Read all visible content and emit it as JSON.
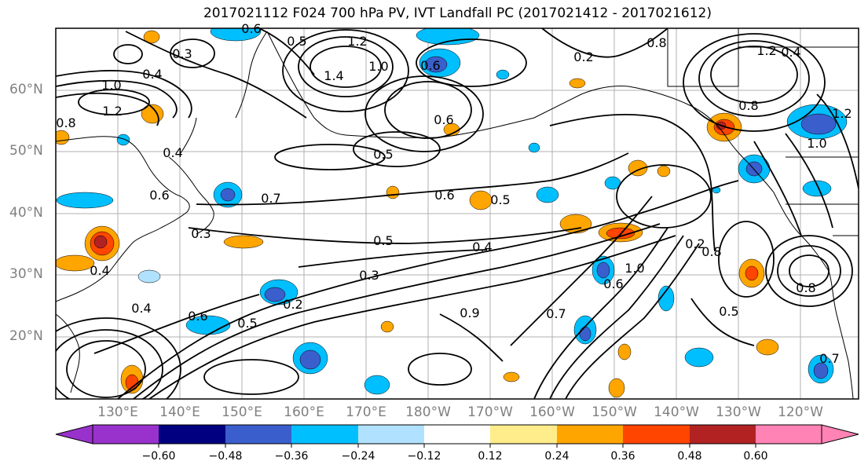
{
  "title": "2017021112 F024 700 hPa PV, IVT Landfall PC (2017021412 - 2017021612)",
  "map": {
    "region": "North Pacific",
    "lat_labels": [
      "60°N",
      "50°N",
      "40°N",
      "30°N",
      "20°N"
    ],
    "lon_labels": [
      "130°E",
      "140°E",
      "150°E",
      "160°E",
      "170°E",
      "180°W",
      "170°W",
      "160°W",
      "150°W",
      "140°W",
      "130°W",
      "120°W"
    ],
    "contour_labels": [
      "0.3",
      "0.6",
      "0.5",
      "1.2",
      "1.4",
      "1.0",
      "0.4",
      "1.0",
      "1.2",
      "0.8",
      "0.6",
      "0.6",
      "0.5",
      "0.7",
      "0.4",
      "0.6",
      "0.3",
      "0.4",
      "0.6",
      "0.5",
      "0.4",
      "0.5",
      "0.3",
      "0.2",
      "0.4",
      "0.6",
      "0.5",
      "0.7",
      "0.9",
      "0.2",
      "0.8",
      "0.6",
      "1.0",
      "0.5",
      "0.8",
      "0.7",
      "0.8",
      "1.2",
      "1.0",
      "1.2",
      "0.4",
      "0.2",
      "0.8"
    ],
    "grid": true,
    "coastlines": true
  },
  "colorbar": {
    "ticks": [
      "−0.60",
      "−0.48",
      "−0.36",
      "−0.24",
      "−0.12",
      "0.12",
      "0.24",
      "0.36",
      "0.48",
      "0.60"
    ],
    "colors": [
      "#9932cc",
      "#000080",
      "#3a5fcd",
      "#00bfff",
      "#b0e2ff",
      "#ffffff",
      "#ffec8b",
      "#ffa500",
      "#ff4500",
      "#b22222",
      "#ff83b4"
    ]
  },
  "shading_colors": {
    "strong_negative": "#3a5fcd",
    "negative": "#00bfff",
    "weak_negative": "#b0e2ff",
    "weak_positive": "#ffec8b",
    "positive": "#ffa500",
    "strong_positive": "#ff4500",
    "very_strong_positive": "#b22222"
  }
}
